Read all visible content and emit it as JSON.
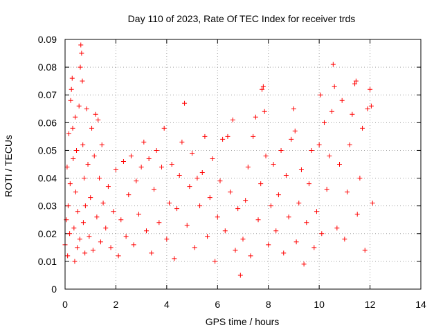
{
  "chart_data": {
    "type": "scatter",
    "title": "Day 110 of 2023, Rate Of TEC Index for receiver trds",
    "xlabel": "GPS time / hours",
    "ylabel": "ROTI / TECUs",
    "xlim": [
      0,
      14
    ],
    "ylim": [
      0,
      0.09
    ],
    "xticks": [
      0,
      2,
      4,
      6,
      8,
      10,
      12,
      14
    ],
    "xtick_labels": [
      "0",
      "2",
      "4",
      "6",
      "8",
      "10",
      "12",
      "14"
    ],
    "yticks": [
      0,
      0.01,
      0.02,
      0.03,
      0.04,
      0.05,
      0.06,
      0.07,
      0.08,
      0.09
    ],
    "ytick_labels": [
      "0",
      "0.01",
      "0.02",
      "0.03",
      "0.04",
      "0.05",
      "0.06",
      "0.07",
      "0.08",
      "0.09"
    ],
    "grid": true,
    "marker": "plus",
    "color": "#ff0000",
    "series": [
      {
        "points": [
          [
            0.0,
            0.016
          ],
          [
            0.05,
            0.025
          ],
          [
            0.08,
            0.044
          ],
          [
            0.1,
            0.012
          ],
          [
            0.12,
            0.03
          ],
          [
            0.15,
            0.056
          ],
          [
            0.18,
            0.02
          ],
          [
            0.2,
            0.038
          ],
          [
            0.22,
            0.068
          ],
          [
            0.25,
            0.072
          ],
          [
            0.28,
            0.076
          ],
          [
            0.3,
            0.058
          ],
          [
            0.32,
            0.047
          ],
          [
            0.35,
            0.022
          ],
          [
            0.38,
            0.01
          ],
          [
            0.4,
            0.062
          ],
          [
            0.42,
            0.035
          ],
          [
            0.45,
            0.05
          ],
          [
            0.48,
            0.015
          ],
          [
            0.5,
            0.028
          ],
          [
            0.55,
            0.066
          ],
          [
            0.58,
            0.018
          ],
          [
            0.6,
            0.08
          ],
          [
            0.62,
            0.088
          ],
          [
            0.65,
            0.085
          ],
          [
            0.68,
            0.075
          ],
          [
            0.7,
            0.052
          ],
          [
            0.72,
            0.024
          ],
          [
            0.75,
            0.04
          ],
          [
            0.78,
            0.013
          ],
          [
            0.8,
            0.03
          ],
          [
            0.85,
            0.065
          ],
          [
            0.9,
            0.045
          ],
          [
            0.95,
            0.019
          ],
          [
            1.0,
            0.033
          ],
          [
            1.05,
            0.058
          ],
          [
            1.1,
            0.014
          ],
          [
            1.15,
            0.048
          ],
          [
            1.2,
            0.063
          ],
          [
            1.25,
            0.026
          ],
          [
            1.3,
            0.061
          ],
          [
            1.35,
            0.04
          ],
          [
            1.4,
            0.017
          ],
          [
            1.45,
            0.052
          ],
          [
            1.5,
            0.031
          ],
          [
            1.6,
            0.022
          ],
          [
            1.7,
            0.037
          ],
          [
            1.8,
            0.015
          ],
          [
            1.9,
            0.028
          ],
          [
            2.0,
            0.043
          ],
          [
            2.1,
            0.012
          ],
          [
            2.2,
            0.025
          ],
          [
            2.3,
            0.046
          ],
          [
            2.4,
            0.019
          ],
          [
            2.5,
            0.034
          ],
          [
            2.6,
            0.048
          ],
          [
            2.7,
            0.016
          ],
          [
            2.8,
            0.039
          ],
          [
            2.9,
            0.027
          ],
          [
            3.0,
            0.044
          ],
          [
            3.1,
            0.053
          ],
          [
            3.2,
            0.021
          ],
          [
            3.3,
            0.047
          ],
          [
            3.4,
            0.013
          ],
          [
            3.5,
            0.036
          ],
          [
            3.6,
            0.05
          ],
          [
            3.7,
            0.024
          ],
          [
            3.8,
            0.044
          ],
          [
            3.9,
            0.058
          ],
          [
            4.0,
            0.018
          ],
          [
            4.1,
            0.031
          ],
          [
            4.2,
            0.045
          ],
          [
            4.3,
            0.011
          ],
          [
            4.4,
            0.029
          ],
          [
            4.5,
            0.041
          ],
          [
            4.6,
            0.053
          ],
          [
            4.7,
            0.067
          ],
          [
            4.8,
            0.023
          ],
          [
            4.9,
            0.037
          ],
          [
            5.0,
            0.049
          ],
          [
            5.1,
            0.015
          ],
          [
            5.2,
            0.04
          ],
          [
            5.3,
            0.03
          ],
          [
            5.4,
            0.042
          ],
          [
            5.5,
            0.055
          ],
          [
            5.6,
            0.019
          ],
          [
            5.7,
            0.033
          ],
          [
            5.8,
            0.047
          ],
          [
            5.9,
            0.01
          ],
          [
            6.0,
            0.026
          ],
          [
            6.1,
            0.039
          ],
          [
            6.2,
            0.054
          ],
          [
            6.3,
            0.021
          ],
          [
            6.4,
            0.055
          ],
          [
            6.5,
            0.035
          ],
          [
            6.6,
            0.061
          ],
          [
            6.7,
            0.014
          ],
          [
            6.8,
            0.029
          ],
          [
            6.9,
            0.005
          ],
          [
            7.0,
            0.018
          ],
          [
            7.1,
            0.032
          ],
          [
            7.2,
            0.044
          ],
          [
            7.3,
            0.012
          ],
          [
            7.4,
            0.055
          ],
          [
            7.5,
            0.062
          ],
          [
            7.6,
            0.025
          ],
          [
            7.7,
            0.038
          ],
          [
            7.75,
            0.072
          ],
          [
            7.8,
            0.073
          ],
          [
            7.85,
            0.064
          ],
          [
            7.9,
            0.048
          ],
          [
            8.0,
            0.016
          ],
          [
            8.1,
            0.03
          ],
          [
            8.2,
            0.045
          ],
          [
            8.3,
            0.021
          ],
          [
            8.4,
            0.034
          ],
          [
            8.5,
            0.05
          ],
          [
            8.6,
            0.013
          ],
          [
            8.7,
            0.041
          ],
          [
            8.8,
            0.026
          ],
          [
            8.9,
            0.054
          ],
          [
            9.0,
            0.065
          ],
          [
            9.05,
            0.057
          ],
          [
            9.1,
            0.017
          ],
          [
            9.2,
            0.031
          ],
          [
            9.3,
            0.043
          ],
          [
            9.4,
            0.009
          ],
          [
            9.5,
            0.024
          ],
          [
            9.6,
            0.038
          ],
          [
            9.7,
            0.05
          ],
          [
            9.8,
            0.015
          ],
          [
            9.9,
            0.028
          ],
          [
            10.0,
            0.052
          ],
          [
            10.05,
            0.07
          ],
          [
            10.1,
            0.02
          ],
          [
            10.2,
            0.06
          ],
          [
            10.3,
            0.036
          ],
          [
            10.4,
            0.048
          ],
          [
            10.5,
            0.064
          ],
          [
            10.55,
            0.081
          ],
          [
            10.6,
            0.073
          ],
          [
            10.7,
            0.022
          ],
          [
            10.8,
            0.045
          ],
          [
            10.9,
            0.068
          ],
          [
            11.0,
            0.018
          ],
          [
            11.1,
            0.035
          ],
          [
            11.2,
            0.052
          ],
          [
            11.3,
            0.063
          ],
          [
            11.4,
            0.074
          ],
          [
            11.45,
            0.075
          ],
          [
            11.5,
            0.027
          ],
          [
            11.6,
            0.04
          ],
          [
            11.7,
            0.058
          ],
          [
            11.8,
            0.014
          ],
          [
            11.9,
            0.065
          ],
          [
            12.0,
            0.072
          ],
          [
            12.05,
            0.066
          ],
          [
            12.1,
            0.031
          ]
        ]
      }
    ]
  }
}
